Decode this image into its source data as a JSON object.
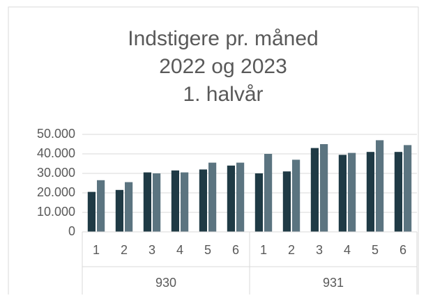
{
  "chart_data": {
    "type": "bar",
    "title": [
      "Indstigere pr. måned",
      "2022 og 2023",
      "1. halvår"
    ],
    "groups": [
      {
        "label": "930",
        "categories": [
          "1",
          "2",
          "3",
          "4",
          "5",
          "6"
        ]
      },
      {
        "label": "931",
        "categories": [
          "1",
          "2",
          "3",
          "4",
          "5",
          "6"
        ]
      }
    ],
    "series": [
      {
        "color": "#1f3a45",
        "values": [
          20500,
          21500,
          30500,
          31500,
          32000,
          34000,
          30000,
          31000,
          43000,
          39500,
          41000,
          41000
        ]
      },
      {
        "color": "#5b7480",
        "values": [
          26500,
          25500,
          30000,
          30500,
          35500,
          35500,
          40000,
          37000,
          45000,
          40500,
          47000,
          44500
        ]
      }
    ],
    "ylim": [
      0,
      50000
    ],
    "yticks": [
      0,
      {
        "value": 10000,
        "label": "10.000"
      },
      {
        "value": 20000,
        "label": "20.000"
      },
      {
        "value": 30000,
        "label": "30.000"
      },
      {
        "value": 40000,
        "label": "40.000"
      },
      {
        "value": 50000,
        "label": "50.000"
      }
    ],
    "grid": true
  }
}
